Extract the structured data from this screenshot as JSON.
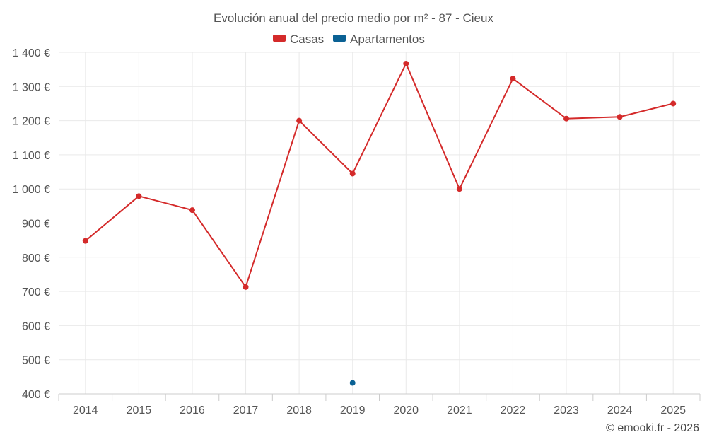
{
  "chart_data": {
    "type": "line",
    "title": "Evolución anual del precio medio por m² - 87 - Cieux",
    "categories": [
      "2014",
      "2015",
      "2016",
      "2017",
      "2018",
      "2019",
      "2020",
      "2021",
      "2022",
      "2023",
      "2024",
      "2025"
    ],
    "series": [
      {
        "name": "Casas",
        "color": "#d42a2a",
        "values": [
          848,
          979,
          938,
          713,
          1200,
          1045,
          1367,
          1000,
          1323,
          1206,
          1211,
          1250
        ]
      },
      {
        "name": "Apartamentos",
        "color": "#0a6194",
        "values": [
          null,
          null,
          null,
          null,
          null,
          432,
          null,
          null,
          null,
          null,
          null,
          null
        ]
      }
    ],
    "ylim": [
      400,
      1400
    ],
    "yticks": [
      400,
      500,
      600,
      700,
      800,
      900,
      1000,
      1100,
      1200,
      1300,
      1400
    ],
    "ytick_labels": [
      "400 €",
      "500 €",
      "600 €",
      "700 €",
      "800 €",
      "900 €",
      "1 000 €",
      "1 100 €",
      "1 200 €",
      "1 300 €",
      "1 400 €"
    ],
    "xlabel": "",
    "ylabel": "",
    "grid": true,
    "legend_position": "top-center"
  },
  "credit": "© emooki.fr - 2026"
}
